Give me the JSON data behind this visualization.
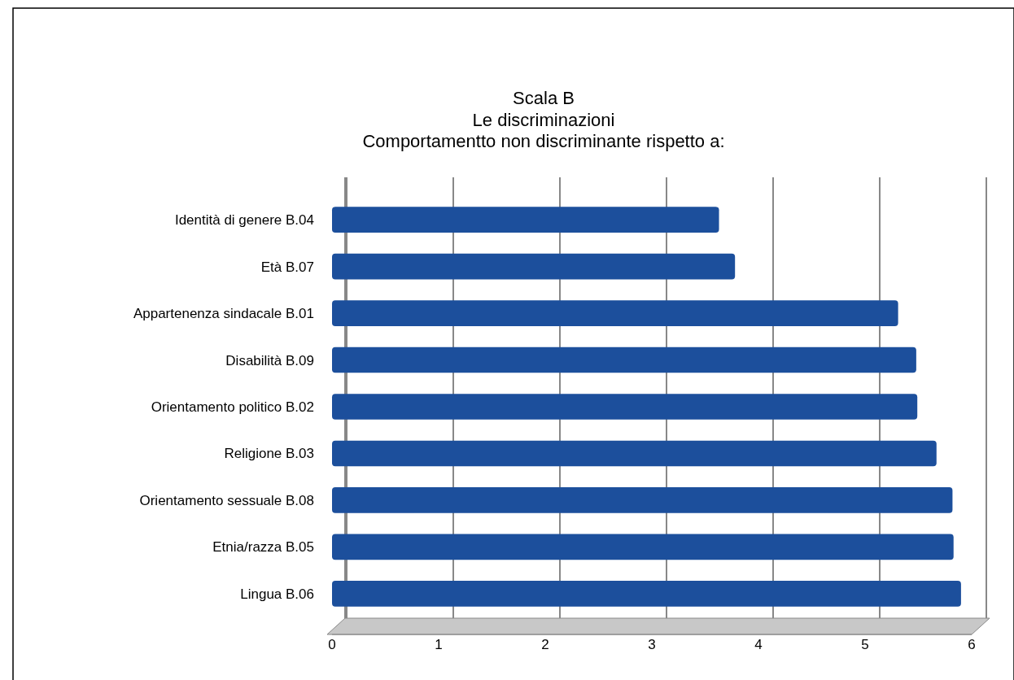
{
  "chart_data": {
    "type": "bar",
    "orientation": "horizontal",
    "title": "Scala B",
    "subtitle": "Le discriminazioni\nComportamentto non discriminante rispetto a:",
    "categories": [
      "Identità di genere B.04",
      "Età B.07",
      "Appartenenza sindacale B.01",
      "Disabilità B.09",
      "Orientamento politico B.02",
      "Religione B.03",
      "Orientamento sessuale B.08",
      "Etnia/razza B.05",
      "Lingua B.06"
    ],
    "values": [
      3.63,
      3.78,
      5.31,
      5.48,
      5.49,
      5.67,
      5.82,
      5.83,
      5.9
    ],
    "color": "#1c4f9c",
    "xlim": [
      0,
      6
    ],
    "xticks": [
      0,
      1,
      2,
      3,
      4,
      5,
      6
    ],
    "grid": "x"
  }
}
